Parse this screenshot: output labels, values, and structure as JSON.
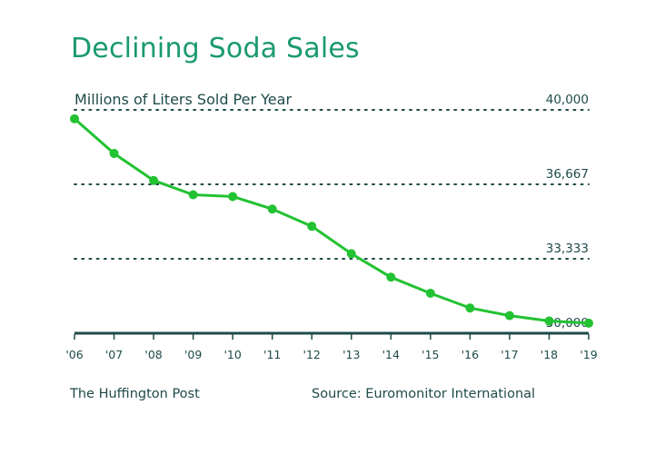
{
  "chart_data": {
    "type": "line",
    "title": "Declining Soda Sales",
    "subtitle": "Millions of Liters Sold Per Year",
    "ylim": [
      30000,
      40000
    ],
    "yticks": [
      "30,000",
      "33,333",
      "36,667",
      "40,000"
    ],
    "x": [
      "'06",
      "'07",
      "'08",
      "'09",
      "'10",
      "'11",
      "'12",
      "'13",
      "'14",
      "'15",
      "'16",
      "'17",
      "'18",
      "'19"
    ],
    "series": [
      {
        "values": [
          39600,
          38050,
          36840,
          36200,
          36120,
          35560,
          34790,
          33560,
          32510,
          31790,
          31130,
          30790,
          30550,
          30450
        ]
      }
    ],
    "grid": true,
    "line_color": "#22c232",
    "grid_color": "#1f4a4a",
    "text_color": "#1f4a4a",
    "title_color": "#1a9a6e"
  },
  "footer": {
    "left": "The Huffington Post",
    "right": "Source: Euromonitor International"
  }
}
